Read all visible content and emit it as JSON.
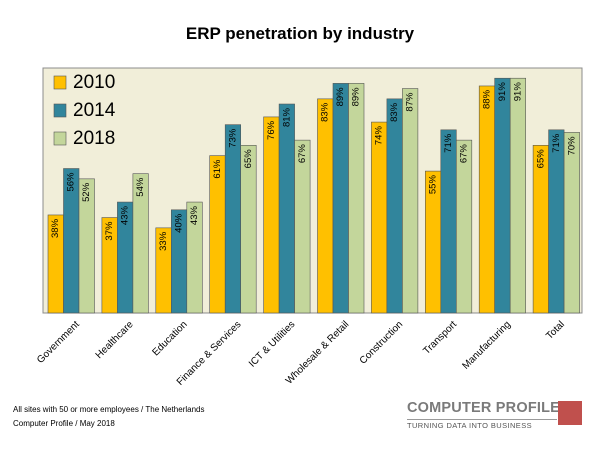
{
  "chart_data": {
    "type": "bar",
    "title": "ERP penetration by industry",
    "categories": [
      "Government",
      "Healthcare",
      "Education",
      "Finance & Services",
      "ICT & Utilities",
      "Wholesale & Retail",
      "Construction",
      "Transport",
      "Manufacturing",
      "Total"
    ],
    "series": [
      {
        "name": "2010",
        "color": "#ffc000",
        "values": [
          38,
          37,
          33,
          61,
          76,
          83,
          74,
          55,
          88,
          65
        ]
      },
      {
        "name": "2014",
        "color": "#31859c",
        "values": [
          56,
          43,
          40,
          73,
          81,
          89,
          83,
          71,
          91,
          71
        ]
      },
      {
        "name": "2018",
        "color": "#c3d69b",
        "values": [
          52,
          54,
          43,
          65,
          67,
          89,
          87,
          67,
          91,
          70
        ]
      }
    ],
    "data_label_suffix": "%",
    "ylim": [
      0,
      100
    ],
    "legend": "top-left",
    "plot_background": "#f1eed9",
    "grid": false
  },
  "footnotes": {
    "line1": "All sites with 50 or more employees  / The Netherlands",
    "line2": "Computer Profile / May 2018"
  },
  "logo": {
    "name": "COMPUTER PROFILE",
    "tagline": "TURNING DATA INTO BUSINESS",
    "accent": "#c0504d"
  }
}
